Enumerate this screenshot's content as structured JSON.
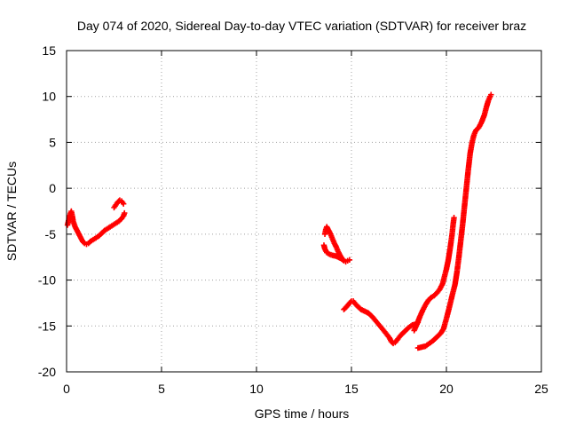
{
  "chart_data": {
    "type": "scatter",
    "title": "Day 074 of 2020, Sidereal Day-to-day VTEC variation (SDTVAR) for receiver braz",
    "xlabel": "GPS time / hours",
    "ylabel": "SDTVAR / TECUs",
    "xlim": [
      0,
      25
    ],
    "ylim": [
      -20,
      15
    ],
    "xticks": [
      0,
      5,
      10,
      15,
      20,
      25
    ],
    "yticks": [
      -20,
      -15,
      -10,
      -5,
      0,
      5,
      10,
      15
    ],
    "xtick_labels": [
      "0",
      "5",
      "10",
      "15",
      "20",
      "25"
    ],
    "ytick_labels": [
      "-20",
      "-15",
      "-10",
      "-5",
      "0",
      "5",
      "10",
      "15"
    ],
    "grid": true,
    "marker": "plus",
    "color": "#ff0000",
    "series": [
      {
        "segments": [
          {
            "points": [
              [
                0.05,
                -4.0
              ],
              [
                0.12,
                -3.4
              ],
              [
                0.2,
                -2.8
              ],
              [
                0.25,
                -2.5
              ],
              [
                0.3,
                -3.0
              ],
              [
                0.35,
                -3.6
              ],
              [
                0.45,
                -4.2
              ],
              [
                0.55,
                -4.6
              ],
              [
                0.65,
                -5.0
              ],
              [
                0.75,
                -5.4
              ],
              [
                0.85,
                -5.8
              ],
              [
                0.95,
                -6.0
              ],
              [
                1.05,
                -6.1
              ],
              [
                1.15,
                -6.0
              ],
              [
                1.25,
                -5.8
              ],
              [
                1.4,
                -5.6
              ],
              [
                1.55,
                -5.4
              ],
              [
                1.7,
                -5.2
              ],
              [
                1.85,
                -4.9
              ],
              [
                2.0,
                -4.6
              ],
              [
                2.15,
                -4.4
              ],
              [
                2.3,
                -4.2
              ],
              [
                2.45,
                -4.0
              ],
              [
                2.6,
                -3.8
              ],
              [
                2.75,
                -3.6
              ],
              [
                2.9,
                -3.3
              ],
              [
                3.0,
                -3.0
              ],
              [
                3.05,
                -2.7
              ]
            ]
          },
          {
            "points": [
              [
                2.5,
                -2.1
              ],
              [
                2.6,
                -1.8
              ],
              [
                2.7,
                -1.5
              ],
              [
                2.8,
                -1.3
              ],
              [
                2.9,
                -1.4
              ],
              [
                3.0,
                -1.7
              ]
            ]
          },
          {
            "points": [
              [
                13.6,
                -5.0
              ],
              [
                13.65,
                -4.5
              ],
              [
                13.7,
                -4.2
              ],
              [
                13.8,
                -4.6
              ],
              [
                13.9,
                -5.0
              ],
              [
                14.0,
                -5.5
              ],
              [
                14.1,
                -6.0
              ],
              [
                14.2,
                -6.4
              ],
              [
                14.3,
                -6.9
              ],
              [
                14.4,
                -7.3
              ],
              [
                14.5,
                -7.7
              ],
              [
                14.6,
                -7.9
              ],
              [
                14.7,
                -8.0
              ],
              [
                14.8,
                -7.9
              ],
              [
                14.9,
                -7.8
              ]
            ]
          },
          {
            "points": [
              [
                13.55,
                -6.2
              ],
              [
                13.6,
                -6.6
              ],
              [
                13.7,
                -7.0
              ],
              [
                13.85,
                -7.2
              ],
              [
                14.0,
                -7.3
              ],
              [
                14.2,
                -7.4
              ],
              [
                14.4,
                -7.6
              ],
              [
                14.6,
                -7.8
              ]
            ]
          },
          {
            "points": [
              [
                14.6,
                -13.2
              ],
              [
                14.75,
                -12.9
              ],
              [
                14.9,
                -12.5
              ],
              [
                15.0,
                -12.3
              ],
              [
                15.1,
                -12.3
              ],
              [
                15.2,
                -12.6
              ],
              [
                15.35,
                -12.9
              ],
              [
                15.5,
                -13.2
              ],
              [
                15.7,
                -13.4
              ],
              [
                15.9,
                -13.6
              ],
              [
                16.1,
                -14.0
              ],
              [
                16.3,
                -14.5
              ],
              [
                16.5,
                -15.0
              ],
              [
                16.7,
                -15.5
              ],
              [
                16.85,
                -15.9
              ],
              [
                17.0,
                -16.3
              ],
              [
                17.1,
                -16.7
              ],
              [
                17.2,
                -16.9
              ],
              [
                17.3,
                -16.8
              ],
              [
                17.45,
                -16.4
              ],
              [
                17.6,
                -16.0
              ],
              [
                17.8,
                -15.6
              ],
              [
                18.0,
                -15.2
              ],
              [
                18.2,
                -14.9
              ],
              [
                18.4,
                -14.8
              ],
              [
                18.5,
                -14.6
              ]
            ]
          },
          {
            "points": [
              [
                18.3,
                -15.5
              ],
              [
                18.45,
                -14.8
              ],
              [
                18.6,
                -14.0
              ],
              [
                18.75,
                -13.3
              ],
              [
                18.9,
                -12.7
              ],
              [
                19.05,
                -12.2
              ],
              [
                19.2,
                -11.9
              ],
              [
                19.35,
                -11.7
              ],
              [
                19.5,
                -11.4
              ],
              [
                19.65,
                -11.0
              ],
              [
                19.8,
                -10.4
              ],
              [
                19.9,
                -9.6
              ],
              [
                20.0,
                -8.8
              ],
              [
                20.1,
                -7.8
              ],
              [
                20.2,
                -6.5
              ],
              [
                20.3,
                -5.0
              ],
              [
                20.35,
                -4.0
              ],
              [
                20.4,
                -3.2
              ]
            ]
          },
          {
            "points": [
              [
                18.5,
                -17.4
              ],
              [
                18.7,
                -17.3
              ],
              [
                18.9,
                -17.2
              ],
              [
                19.1,
                -16.9
              ],
              [
                19.3,
                -16.6
              ],
              [
                19.5,
                -16.2
              ],
              [
                19.7,
                -15.8
              ],
              [
                19.85,
                -15.3
              ],
              [
                20.0,
                -14.2
              ],
              [
                20.15,
                -13.0
              ],
              [
                20.3,
                -11.7
              ],
              [
                20.45,
                -10.5
              ],
              [
                20.55,
                -9.2
              ],
              [
                20.65,
                -7.6
              ],
              [
                20.75,
                -5.8
              ],
              [
                20.85,
                -4.0
              ],
              [
                20.95,
                -2.0
              ],
              [
                21.05,
                0.0
              ],
              [
                21.15,
                2.0
              ],
              [
                21.25,
                3.8
              ],
              [
                21.35,
                5.0
              ],
              [
                21.45,
                5.8
              ],
              [
                21.55,
                6.3
              ],
              [
                21.7,
                6.6
              ],
              [
                21.85,
                7.2
              ],
              [
                22.0,
                8.0
              ],
              [
                22.1,
                8.8
              ],
              [
                22.2,
                9.5
              ],
              [
                22.3,
                10.0
              ],
              [
                22.35,
                10.2
              ]
            ]
          }
        ]
      }
    ]
  }
}
